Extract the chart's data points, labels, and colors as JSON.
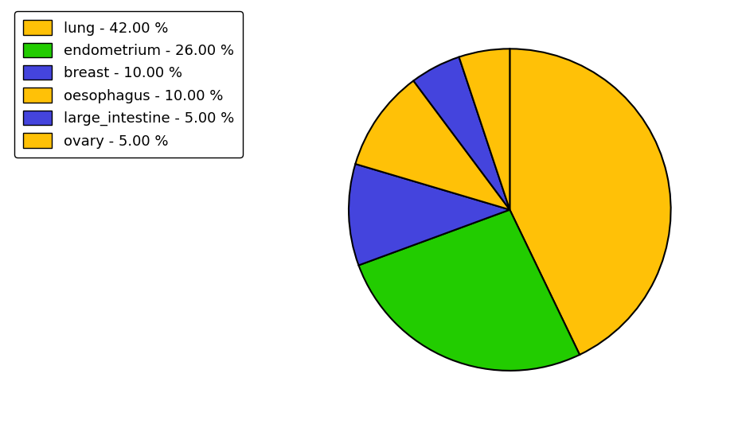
{
  "labels": [
    "lung",
    "endometrium",
    "breast",
    "oesophagus",
    "large_intestine",
    "ovary"
  ],
  "values": [
    42.0,
    26.0,
    10.0,
    10.0,
    5.0,
    5.0
  ],
  "colors": [
    "#FFC107",
    "#22CC00",
    "#4444DD",
    "#FFC107",
    "#4444DD",
    "#FFC107"
  ],
  "legend_labels": [
    "lung - 42.00 %",
    "endometrium - 26.00 %",
    "breast - 10.00 %",
    "oesophagus - 10.00 %",
    "large_intestine - 5.00 %",
    "ovary - 5.00 %"
  ],
  "edge_color": "black",
  "edge_width": 1.5,
  "background_color": "#ffffff",
  "startangle": 90,
  "legend_fontsize": 13
}
